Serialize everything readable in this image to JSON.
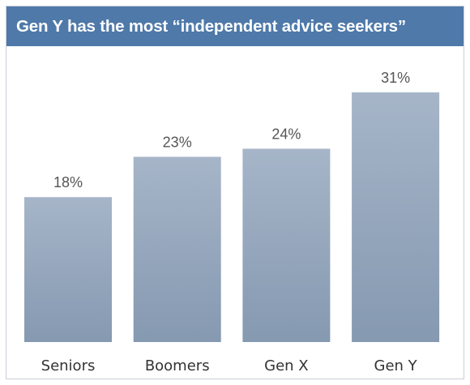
{
  "title": "Gen Y has the most “independent advice seekers”",
  "colors": {
    "title_bar": "#4e79a9",
    "bar_top": "#a6b5c8",
    "bar_bottom": "#8599b1"
  },
  "chart_data": {
    "type": "bar",
    "title": "Gen Y has the most “independent advice seekers”",
    "xlabel": "",
    "ylabel": "",
    "categories": [
      "Seniors",
      "Boomers",
      "Gen X",
      "Gen Y"
    ],
    "values": [
      18,
      23,
      24,
      31
    ],
    "value_labels": [
      "18%",
      "23%",
      "24%",
      "31%"
    ],
    "ylim": [
      0,
      36
    ],
    "grid": false,
    "legend": "none"
  }
}
